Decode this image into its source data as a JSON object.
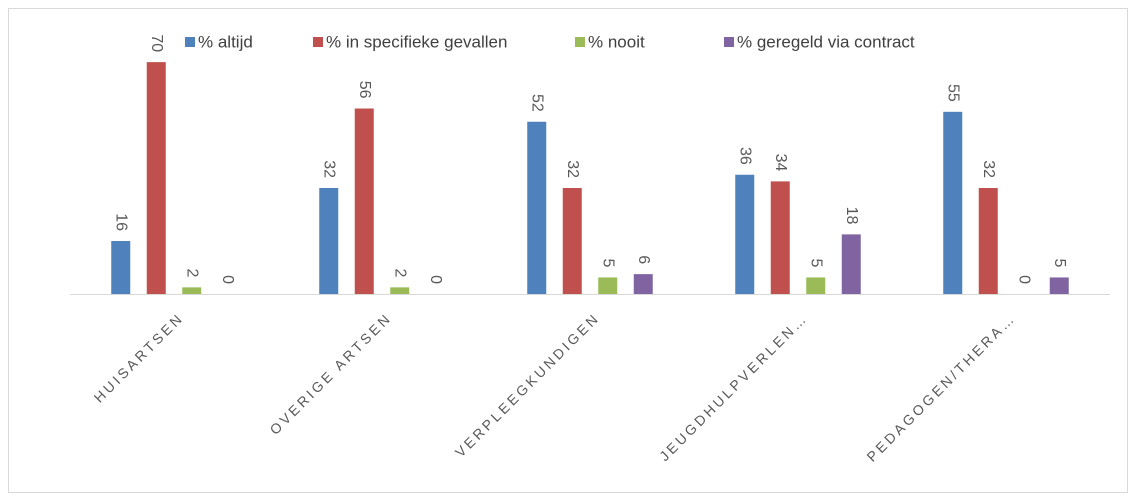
{
  "chart_data": {
    "type": "bar",
    "categories": [
      "HUISARTSEN",
      "OVERIGE ARTSEN",
      "VERPLEEGKUNDIGEN",
      "JEUGDHULPVERLEN…",
      "PEDAGOGEN/THERA…"
    ],
    "series": [
      {
        "name": "% altijd",
        "color": "#4f81bd",
        "values": [
          16,
          32,
          52,
          36,
          55
        ]
      },
      {
        "name": "% in specifieke gevallen",
        "color": "#c0504d",
        "values": [
          70,
          56,
          32,
          34,
          32
        ]
      },
      {
        "name": "% nooit",
        "color": "#9bbb59",
        "values": [
          2,
          2,
          5,
          5,
          0
        ]
      },
      {
        "name": "% geregeld via contract",
        "color": "#8064a2",
        "values": [
          0,
          0,
          6,
          18,
          5
        ]
      }
    ],
    "ylim": [
      0,
      80
    ],
    "legend": "top"
  }
}
